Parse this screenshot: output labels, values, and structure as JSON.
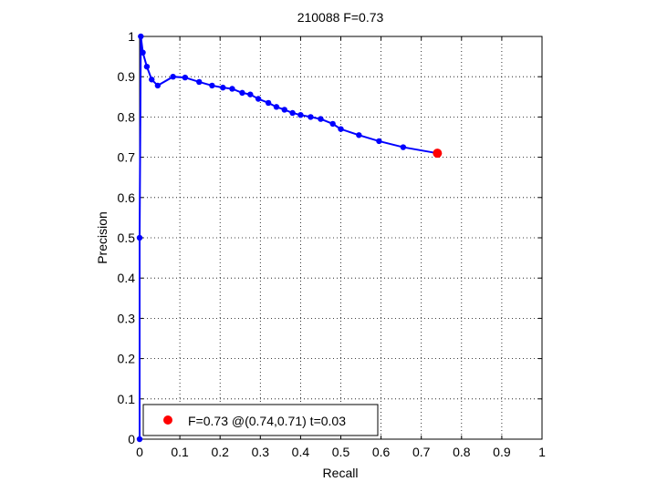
{
  "chart_data": {
    "type": "line",
    "title": "210088 F=0.73",
    "xlabel": "Recall",
    "ylabel": "Precision",
    "xlim": [
      0,
      1
    ],
    "ylim": [
      0,
      1
    ],
    "xticks": [
      0,
      0.1,
      0.2,
      0.3,
      0.4,
      0.5,
      0.6,
      0.7,
      0.8,
      0.9,
      1
    ],
    "yticks": [
      0,
      0.1,
      0.2,
      0.3,
      0.4,
      0.5,
      0.6,
      0.7,
      0.8,
      0.9,
      1
    ],
    "xtick_labels": [
      "0",
      "0.1",
      "0.2",
      "0.3",
      "0.4",
      "0.5",
      "0.6",
      "0.7",
      "0.8",
      "0.9",
      "1"
    ],
    "ytick_labels": [
      "0",
      "0.1",
      "0.2",
      "0.3",
      "0.4",
      "0.5",
      "0.6",
      "0.7",
      "0.8",
      "0.9",
      "1"
    ],
    "grid": true,
    "legend_position": "bottom-left",
    "series": [
      {
        "color": "#0000ff",
        "marker": "dot",
        "x": [
          0,
          0,
          0.003,
          0.008,
          0.018,
          0.03,
          0.045,
          0.083,
          0.113,
          0.148,
          0.18,
          0.207,
          0.23,
          0.255,
          0.275,
          0.295,
          0.32,
          0.34,
          0.36,
          0.38,
          0.4,
          0.425,
          0.45,
          0.48,
          0.5,
          0.545,
          0.595,
          0.655,
          0.74
        ],
        "y": [
          0,
          0.5,
          1.0,
          0.96,
          0.925,
          0.893,
          0.878,
          0.9,
          0.898,
          0.887,
          0.878,
          0.873,
          0.87,
          0.86,
          0.856,
          0.845,
          0.835,
          0.825,
          0.818,
          0.81,
          0.805,
          0.8,
          0.795,
          0.783,
          0.77,
          0.755,
          0.74,
          0.725,
          0.71
        ]
      }
    ],
    "best_point": {
      "x": 0.74,
      "y": 0.71,
      "color": "#ff0000"
    },
    "legend_text": "F=0.73 @(0.74,0.71) t=0.03"
  }
}
